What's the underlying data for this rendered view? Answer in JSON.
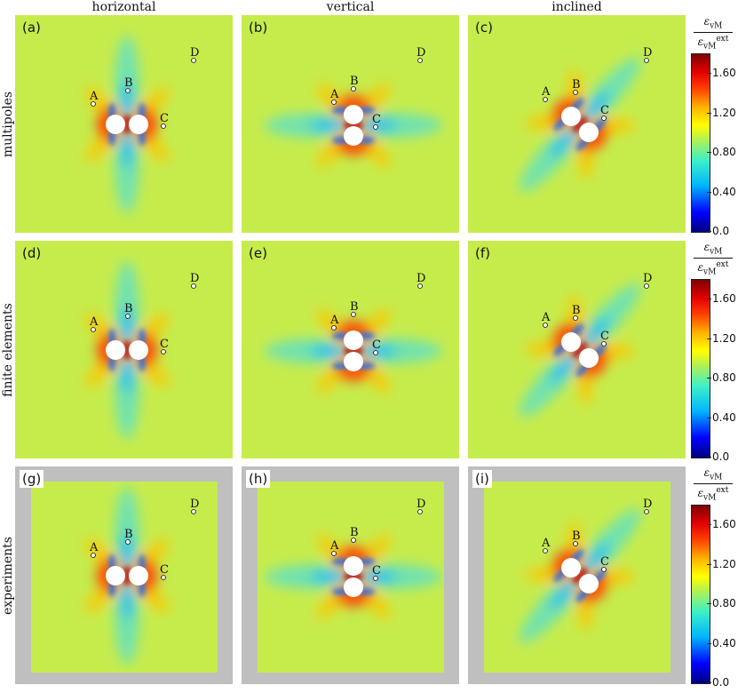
{
  "columns": [
    "horizontal",
    "vertical",
    "inclined"
  ],
  "rows": [
    "multipoles",
    "finite elements",
    "experiments"
  ],
  "panels": [
    {
      "letter": "(a)",
      "config": "horizontal",
      "type": "sim"
    },
    {
      "letter": "(b)",
      "config": "vertical",
      "type": "sim"
    },
    {
      "letter": "(c)",
      "config": "inclined",
      "type": "sim"
    },
    {
      "letter": "(d)",
      "config": "horizontal",
      "type": "sim"
    },
    {
      "letter": "(e)",
      "config": "vertical",
      "type": "sim"
    },
    {
      "letter": "(f)",
      "config": "inclined",
      "type": "sim"
    },
    {
      "letter": "(g)",
      "config": "horizontal",
      "type": "exp"
    },
    {
      "letter": "(h)",
      "config": "vertical",
      "type": "exp"
    },
    {
      "letter": "(i)",
      "config": "inclined",
      "type": "exp"
    }
  ],
  "points": [
    "A",
    "B",
    "C",
    "D"
  ],
  "colorbar": {
    "numerator": "ε",
    "numerator_sub": "vM",
    "denominator": "ε",
    "denominator_sub": "vM",
    "denominator_sup": "ext",
    "ticks": [
      "0.0",
      "0.40",
      "0.80",
      "1.20",
      "1.60"
    ],
    "range": [
      0.0,
      1.8
    ]
  },
  "colors": {
    "background_field": "#c6ec4c",
    "hot": "#ff3c00",
    "cold": "#00b4ff",
    "mask": "#bfbfbf"
  }
}
